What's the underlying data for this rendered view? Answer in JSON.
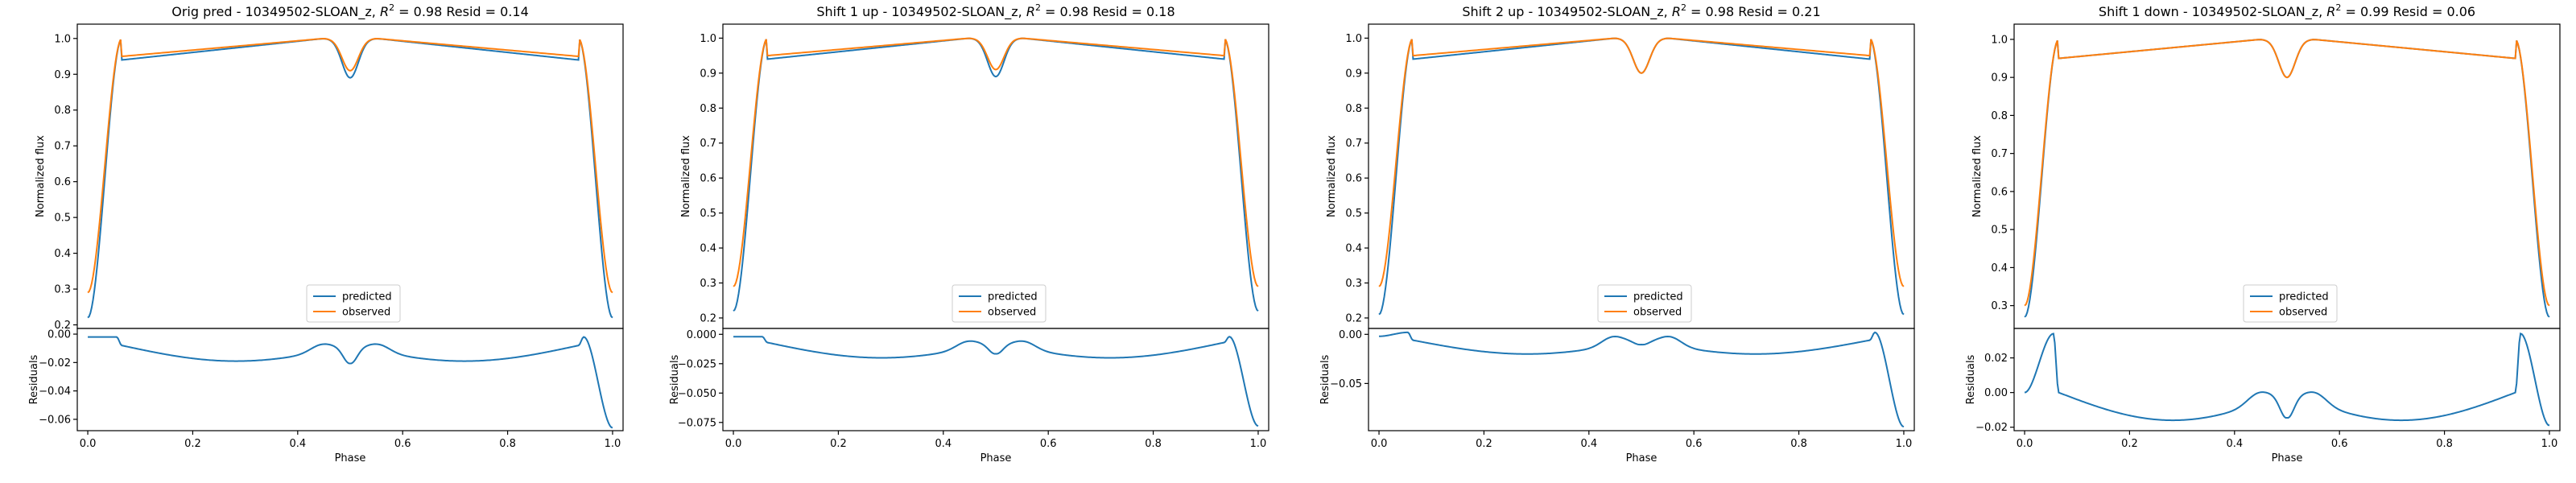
{
  "colors": {
    "predicted": "#1f77b4",
    "observed": "#ff7f0e"
  },
  "chart_data": [
    {
      "type": "line",
      "title": "Orig pred - 10349502-SLOAN_z, $R^2 = 0.98$ Resid = 0.14",
      "title_parts": {
        "prefix": "Orig pred - 10349502-SLOAN_z, ",
        "r2_symbol": "R",
        "r2_exp": "2",
        "r2_value": " = 0.98 Resid = 0.14"
      },
      "main": {
        "ylabel": "Normalized flux",
        "ylim": [
          0.19,
          1.04
        ],
        "yticks": [
          "0.2",
          "0.3",
          "0.4",
          "0.5",
          "0.6",
          "0.7",
          "0.8",
          "0.9",
          "1.0"
        ],
        "ytick_values": [
          0.2,
          0.3,
          0.4,
          0.5,
          0.6,
          0.7,
          0.8,
          0.9,
          1.0
        ],
        "model": {
          "depth": 0.78,
          "plateau": 0.94,
          "dip": 0.89
        },
        "observed_model": {
          "depth": 0.71,
          "plateau": 0.95,
          "dip": 0.91
        },
        "legend": [
          "predicted",
          "observed"
        ],
        "legend_loc": "lower center"
      },
      "residual": {
        "ylabel": "Residuals",
        "ylim": [
          -0.068,
          0.004
        ],
        "yticks": [
          "0.00",
          "−0.02",
          "−0.04",
          "−0.06"
        ],
        "ytick_values": [
          0.0,
          -0.02,
          -0.04,
          -0.06
        ],
        "model": {
          "start": -0.002,
          "edge_peak": -0.002,
          "plateau": -0.008,
          "mid": -0.019,
          "center_peak": -0.003,
          "center_dip": -0.016,
          "end": -0.066
        }
      },
      "xlabel": "Phase",
      "xlim": [
        -0.02,
        1.02
      ],
      "xticks": [
        "0.0",
        "0.2",
        "0.4",
        "0.6",
        "0.8",
        "1.0"
      ],
      "xtick_values": [
        0.0,
        0.2,
        0.4,
        0.6,
        0.8,
        1.0
      ]
    },
    {
      "type": "line",
      "title": "Shift 1 up - 10349502-SLOAN_z, $R^2 = 0.98$ Resid = 0.18",
      "title_parts": {
        "prefix": "Shift 1 up - 10349502-SLOAN_z, ",
        "r2_symbol": "R",
        "r2_exp": "2",
        "r2_value": " = 0.98 Resid = 0.18"
      },
      "main": {
        "ylabel": "Normalized flux",
        "ylim": [
          0.17,
          1.04
        ],
        "yticks": [
          "0.2",
          "0.3",
          "0.4",
          "0.5",
          "0.6",
          "0.7",
          "0.8",
          "0.9",
          "1.0"
        ],
        "ytick_values": [
          0.2,
          0.3,
          0.4,
          0.5,
          0.6,
          0.7,
          0.8,
          0.9,
          1.0
        ],
        "model": {
          "depth": 0.78,
          "plateau": 0.94,
          "dip": 0.89
        },
        "observed_model": {
          "depth": 0.71,
          "plateau": 0.95,
          "dip": 0.91
        },
        "legend": [
          "predicted",
          "observed"
        ],
        "legend_loc": "lower center"
      },
      "residual": {
        "ylabel": "Residuals",
        "ylim": [
          -0.082,
          0.005
        ],
        "yticks": [
          "0.000",
          "−0.025",
          "−0.050",
          "−0.075"
        ],
        "ytick_values": [
          0.0,
          -0.025,
          -0.05,
          -0.075
        ],
        "model": {
          "start": -0.002,
          "edge_peak": -0.002,
          "plateau": -0.007,
          "mid": -0.02,
          "center_peak": -0.001,
          "center_dip": -0.011,
          "end": -0.078
        }
      },
      "xlabel": "Phase",
      "xlim": [
        -0.02,
        1.02
      ],
      "xticks": [
        "0.0",
        "0.2",
        "0.4",
        "0.6",
        "0.8",
        "1.0"
      ],
      "xtick_values": [
        0.0,
        0.2,
        0.4,
        0.6,
        0.8,
        1.0
      ]
    },
    {
      "type": "line",
      "title": "Shift 2 up - 10349502-SLOAN_z, $R^2 = 0.98$ Resid = 0.21",
      "title_parts": {
        "prefix": "Shift 2 up - 10349502-SLOAN_z, ",
        "r2_symbol": "R",
        "r2_exp": "2",
        "r2_value": " = 0.98 Resid = 0.21"
      },
      "main": {
        "ylabel": "Normalized flux",
        "ylim": [
          0.17,
          1.04
        ],
        "yticks": [
          "0.2",
          "0.3",
          "0.4",
          "0.5",
          "0.6",
          "0.7",
          "0.8",
          "0.9",
          "1.0"
        ],
        "ytick_values": [
          0.2,
          0.3,
          0.4,
          0.5,
          0.6,
          0.7,
          0.8,
          0.9,
          1.0
        ],
        "model": {
          "depth": 0.79,
          "plateau": 0.94,
          "dip": 0.9
        },
        "observed_model": {
          "depth": 0.71,
          "plateau": 0.95,
          "dip": 0.9
        },
        "legend": [
          "predicted",
          "observed"
        ],
        "legend_loc": "lower center"
      },
      "residual": {
        "ylabel": "Residuals",
        "ylim": [
          -0.098,
          0.006
        ],
        "yticks": [
          "0.00",
          "−0.05"
        ],
        "ytick_values": [
          0.0,
          -0.05
        ],
        "model": {
          "start": -0.002,
          "edge_peak": 0.002,
          "plateau": -0.006,
          "mid": -0.02,
          "center_peak": 0.003,
          "center_dip": -0.002,
          "end": -0.094
        }
      },
      "xlabel": "Phase",
      "xlim": [
        -0.02,
        1.02
      ],
      "xticks": [
        "0.0",
        "0.2",
        "0.4",
        "0.6",
        "0.8",
        "1.0"
      ],
      "xtick_values": [
        0.0,
        0.2,
        0.4,
        0.6,
        0.8,
        1.0
      ]
    },
    {
      "type": "line",
      "title": "Shift 1 down - 10349502-SLOAN_z, $R^2 = 0.99$ Resid = 0.06",
      "title_parts": {
        "prefix": "Shift 1 down - 10349502-SLOAN_z, ",
        "r2_symbol": "R",
        "r2_exp": "2",
        "r2_value": " = 0.99 Resid = 0.06"
      },
      "main": {
        "ylabel": "Normalized flux",
        "ylim": [
          0.24,
          1.04
        ],
        "yticks": [
          "0.3",
          "0.4",
          "0.5",
          "0.6",
          "0.7",
          "0.8",
          "0.9",
          "1.0"
        ],
        "ytick_values": [
          0.3,
          0.4,
          0.5,
          0.6,
          0.7,
          0.8,
          0.9,
          1.0
        ],
        "model": {
          "depth": 0.73,
          "plateau": 0.95,
          "dip": 0.9
        },
        "observed_model": {
          "depth": 0.7,
          "plateau": 0.95,
          "dip": 0.9
        },
        "legend": [
          "predicted",
          "observed"
        ],
        "legend_loc": "lower center"
      },
      "residual": {
        "ylabel": "Residuals",
        "ylim": [
          -0.022,
          0.037
        ],
        "yticks": [
          "0.02",
          "0.00",
          "−0.02"
        ],
        "ytick_values": [
          0.02,
          0.0,
          -0.02
        ],
        "model": {
          "start": 0.0,
          "edge_peak": 0.034,
          "plateau": 0.0,
          "mid": -0.016,
          "center_peak": 0.006,
          "center_dip": -0.009,
          "end": -0.019
        }
      },
      "xlabel": "Phase",
      "xlim": [
        -0.02,
        1.02
      ],
      "xticks": [
        "0.0",
        "0.2",
        "0.4",
        "0.6",
        "0.8",
        "1.0"
      ],
      "xtick_values": [
        0.0,
        0.2,
        0.4,
        0.6,
        0.8,
        1.0
      ]
    }
  ]
}
